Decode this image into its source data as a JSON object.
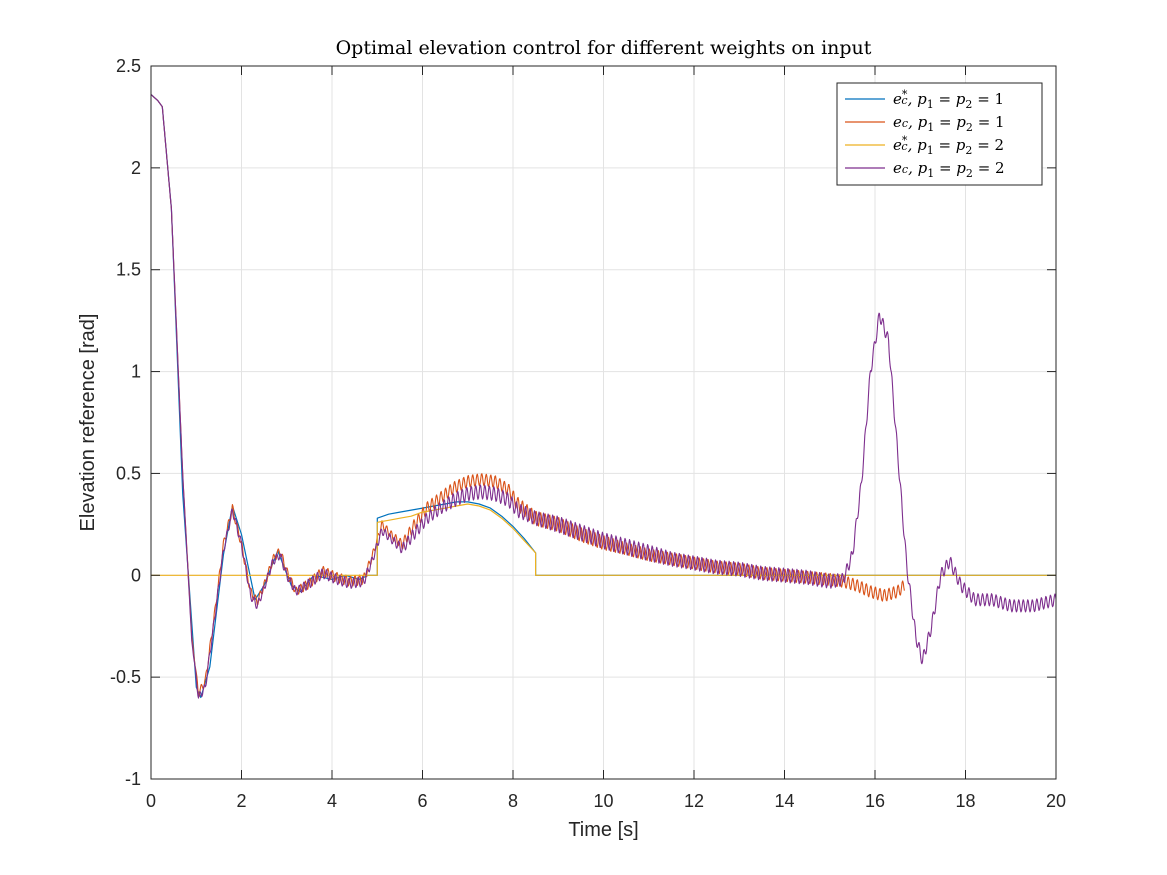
{
  "chart_data": {
    "type": "line",
    "title": "Optimal elevation control for different weights on input",
    "xlabel": "Time [s]",
    "ylabel": "Elevation reference [rad]",
    "xlim": [
      0,
      20
    ],
    "ylim": [
      -1,
      2.5
    ],
    "xticks": [
      0,
      2,
      4,
      6,
      8,
      10,
      12,
      14,
      16,
      18,
      20
    ],
    "yticks": [
      -1,
      -0.5,
      0,
      0.5,
      1,
      1.5,
      2,
      2.5
    ],
    "xtick_labels": [
      "0",
      "2",
      "4",
      "6",
      "8",
      "10",
      "12",
      "14",
      "16",
      "18",
      "20"
    ],
    "ytick_labels": [
      "-1",
      "-0.5",
      "0",
      "0.5",
      "1",
      "1.5",
      "2",
      "2.5"
    ],
    "grid": true,
    "legend_position": "top-right",
    "series": [
      {
        "name": "e_c*, p1 = p2 = 1",
        "legend": {
          "base": "e",
          "sub": "c",
          "sup": "*",
          "rest": ", p",
          "s1": "1",
          "mid": " = p",
          "s2": "2",
          "tail": " = 1"
        },
        "color": "#0072BD",
        "style": "step-smooth",
        "x": [
          0,
          0.15,
          0.25,
          0.45,
          0.7,
          1.0,
          1.1,
          1.3,
          1.6,
          1.8,
          2.0,
          2.3,
          2.5,
          2.8,
          3.1,
          3.3,
          3.6,
          4.0,
          4.3,
          4.6,
          4.8,
          5.0,
          5.0,
          5.25,
          5.5,
          5.75,
          6.0,
          6.25,
          6.5,
          6.75,
          7.0,
          7.25,
          7.5,
          7.75,
          8.0,
          8.25,
          8.5,
          8.5,
          9.0,
          12.0,
          16.0,
          20.0
        ],
        "y": [
          2.36,
          2.33,
          2.3,
          1.8,
          0.4,
          -0.55,
          -0.6,
          -0.45,
          0.1,
          0.34,
          0.2,
          -0.12,
          -0.05,
          0.12,
          -0.05,
          -0.08,
          0.0,
          -0.02,
          0.0,
          -0.02,
          0.0,
          0.0,
          0.28,
          0.3,
          0.31,
          0.32,
          0.33,
          0.34,
          0.35,
          0.36,
          0.36,
          0.35,
          0.33,
          0.29,
          0.24,
          0.18,
          0.11,
          0.0,
          0.0,
          0.0,
          0.0,
          0.0
        ]
      },
      {
        "name": "e_c, p1 = p2 = 1",
        "legend": {
          "base": "e",
          "sub": "c",
          "sup": "",
          "rest": ", p",
          "s1": "1",
          "mid": " = p",
          "s2": "2",
          "tail": " = 1"
        },
        "color": "#D95319",
        "style": "oscillating",
        "x": [
          0,
          0.15,
          0.25,
          0.45,
          0.7,
          0.9,
          1.05,
          1.2,
          1.4,
          1.6,
          1.8,
          2.0,
          2.2,
          2.35,
          2.5,
          2.7,
          2.85,
          3.0,
          3.2,
          3.5,
          3.8,
          4.1,
          4.4,
          4.7,
          4.9,
          5.1,
          5.3,
          5.55,
          5.8,
          6.1,
          6.4,
          6.7,
          7.0,
          7.3,
          7.6,
          7.9,
          8.1,
          8.5,
          9.0,
          9.5,
          10.0,
          10.5,
          11.0,
          11.5,
          12.0,
          12.5,
          13.0,
          13.5,
          14.0,
          14.5,
          15.0,
          15.3,
          15.6,
          15.9,
          16.2,
          16.5,
          16.65
        ],
        "y": [
          2.36,
          2.33,
          2.3,
          1.8,
          0.5,
          -0.3,
          -0.58,
          -0.52,
          -0.2,
          0.15,
          0.33,
          0.15,
          -0.08,
          -0.13,
          -0.05,
          0.08,
          0.12,
          0.02,
          -0.08,
          -0.04,
          0.02,
          -0.01,
          -0.03,
          -0.02,
          0.1,
          0.25,
          0.2,
          0.15,
          0.24,
          0.33,
          0.38,
          0.43,
          0.46,
          0.47,
          0.46,
          0.42,
          0.35,
          0.28,
          0.25,
          0.2,
          0.16,
          0.13,
          0.1,
          0.08,
          0.06,
          0.04,
          0.03,
          0.01,
          0.0,
          -0.01,
          -0.02,
          -0.03,
          -0.05,
          -0.08,
          -0.1,
          -0.08,
          -0.05
        ],
        "amp": [
          0,
          0,
          0,
          0,
          0,
          0,
          0.02,
          0.02,
          0.02,
          0.02,
          0.02,
          0.02,
          0.02,
          0.02,
          0.02,
          0.02,
          0.02,
          0.02,
          0.02,
          0.025,
          0.025,
          0.025,
          0.025,
          0.025,
          0.02,
          0.02,
          0.02,
          0.025,
          0.03,
          0.03,
          0.03,
          0.03,
          0.03,
          0.03,
          0.03,
          0.03,
          0.035,
          0.035,
          0.035,
          0.035,
          0.035,
          0.03,
          0.03,
          0.03,
          0.03,
          0.03,
          0.03,
          0.03,
          0.03,
          0.03,
          0.03,
          0.03,
          0.03,
          0.03,
          0.03,
          0.03,
          0.03
        ]
      },
      {
        "name": "e_c*, p1 = p2 = 2",
        "legend": {
          "base": "e",
          "sub": "c",
          "sup": "*",
          "rest": ", p",
          "s1": "1",
          "mid": " = p",
          "s2": "2",
          "tail": " = 2"
        },
        "color": "#EDB120",
        "style": "step-smooth",
        "x": [
          0,
          0.01,
          5.0,
          5.0,
          5.25,
          5.5,
          5.75,
          6.0,
          6.25,
          6.5,
          6.75,
          7.0,
          7.25,
          7.5,
          7.75,
          8.0,
          8.25,
          8.5,
          8.5,
          20.0
        ],
        "y": [
          0.0,
          0.0,
          0.0,
          0.26,
          0.27,
          0.28,
          0.29,
          0.31,
          0.32,
          0.33,
          0.34,
          0.35,
          0.34,
          0.32,
          0.28,
          0.23,
          0.17,
          0.11,
          0.0,
          0.0
        ]
      },
      {
        "name": "e_c, p1 = p2 = 2",
        "legend": {
          "base": "e",
          "sub": "c",
          "sup": "",
          "rest": ", p",
          "s1": "1",
          "mid": " = p",
          "s2": "2",
          "tail": " = 2"
        },
        "color": "#7E2F8E",
        "style": "oscillating",
        "x": [
          0,
          0.15,
          0.25,
          0.45,
          0.7,
          0.9,
          1.05,
          1.2,
          1.4,
          1.6,
          1.8,
          2.0,
          2.2,
          2.35,
          2.5,
          2.7,
          2.85,
          3.0,
          3.2,
          3.5,
          3.8,
          4.1,
          4.4,
          4.7,
          4.9,
          5.1,
          5.3,
          5.55,
          5.8,
          6.1,
          6.4,
          6.7,
          7.0,
          7.3,
          7.6,
          7.9,
          8.1,
          8.5,
          9.0,
          9.5,
          10.0,
          10.5,
          11.0,
          11.5,
          12.0,
          12.5,
          13.0,
          13.5,
          14.0,
          14.5,
          15.0,
          15.3,
          15.5,
          15.7,
          15.9,
          16.1,
          16.3,
          16.5,
          16.7,
          16.9,
          17.05,
          17.25,
          17.45,
          17.65,
          17.9,
          18.2,
          18.6,
          19.0,
          19.5,
          20.0
        ],
        "y": [
          2.36,
          2.33,
          2.3,
          1.8,
          0.5,
          -0.32,
          -0.6,
          -0.55,
          -0.22,
          0.12,
          0.32,
          0.15,
          -0.1,
          -0.15,
          -0.06,
          0.07,
          0.1,
          0.0,
          -0.08,
          -0.04,
          0.01,
          -0.02,
          -0.04,
          -0.03,
          0.08,
          0.22,
          0.18,
          0.13,
          0.2,
          0.28,
          0.33,
          0.37,
          0.4,
          0.41,
          0.4,
          0.37,
          0.32,
          0.28,
          0.25,
          0.21,
          0.17,
          0.14,
          0.11,
          0.08,
          0.06,
          0.04,
          0.03,
          0.01,
          0.0,
          -0.01,
          -0.03,
          -0.02,
          0.1,
          0.45,
          1.0,
          1.28,
          1.15,
          0.6,
          0.05,
          -0.3,
          -0.42,
          -0.25,
          0.0,
          0.07,
          -0.05,
          -0.12,
          -0.12,
          -0.15,
          -0.15,
          -0.12
        ],
        "amp": [
          0,
          0,
          0,
          0,
          0,
          0,
          0.02,
          0.02,
          0.02,
          0.02,
          0.02,
          0.02,
          0.02,
          0.02,
          0.02,
          0.02,
          0.02,
          0.02,
          0.02,
          0.025,
          0.025,
          0.025,
          0.025,
          0.025,
          0.02,
          0.02,
          0.02,
          0.025,
          0.03,
          0.03,
          0.03,
          0.035,
          0.035,
          0.035,
          0.035,
          0.035,
          0.035,
          0.035,
          0.04,
          0.04,
          0.04,
          0.04,
          0.04,
          0.035,
          0.035,
          0.035,
          0.035,
          0.035,
          0.035,
          0.035,
          0.035,
          0.03,
          0.03,
          0.03,
          0.03,
          0.03,
          0.03,
          0.03,
          0.03,
          0.03,
          0.03,
          0.03,
          0.03,
          0.03,
          0.03,
          0.03,
          0.03,
          0.03,
          0.03,
          0.03
        ]
      }
    ]
  }
}
